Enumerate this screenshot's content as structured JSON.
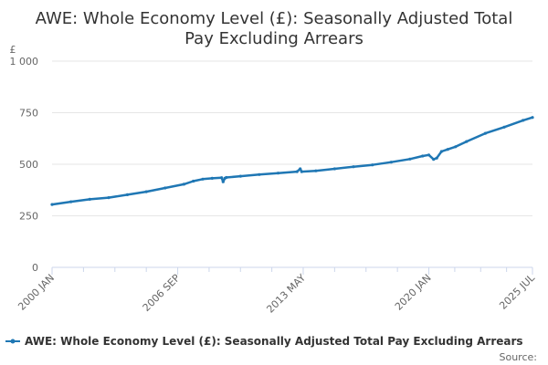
{
  "chart_data": {
    "type": "line",
    "title": "AWE: Whole Economy Level (£): Seasonally Adjusted Total Pay Excluding Arrears",
    "title_lines": [
      "AWE: Whole Economy Level (£): Seasonally Adjusted Total",
      "Pay Excluding Arrears"
    ],
    "ylabel": "£",
    "xlabel": "",
    "ylim": [
      0,
      1000
    ],
    "y_ticks": [
      {
        "value": 0,
        "label": "0"
      },
      {
        "value": 250,
        "label": "250"
      },
      {
        "value": 500,
        "label": "500"
      },
      {
        "value": 750,
        "label": "750"
      },
      {
        "value": 1000,
        "label": "1 000"
      }
    ],
    "x_range": [
      2000.0,
      2025.5
    ],
    "x_ticks": [
      {
        "value": 2000.0,
        "label": "2000 JAN"
      },
      {
        "value": 2006.67,
        "label": "2006 SEP"
      },
      {
        "value": 2013.33,
        "label": "2013 MAY"
      },
      {
        "value": 2020.0,
        "label": "2020 JAN"
      },
      {
        "value": 2025.5,
        "label": "2025 JUL"
      }
    ],
    "grid": true,
    "legend_position": "bottom",
    "series": [
      {
        "name": "AWE: Whole Economy Level (£): Seasonally Adjusted Total Pay Excluding Arrears",
        "color": "#1f77b4",
        "x": [
          2000.0,
          2001.0,
          2002.0,
          2003.0,
          2004.0,
          2005.0,
          2006.0,
          2007.0,
          2007.5,
          2008.0,
          2008.5,
          2009.0,
          2009.08,
          2009.17,
          2009.25,
          2010.0,
          2011.0,
          2012.0,
          2013.0,
          2013.17,
          2013.25,
          2014.0,
          2015.0,
          2016.0,
          2017.0,
          2018.0,
          2019.0,
          2019.67,
          2020.0,
          2020.25,
          2020.42,
          2020.67,
          2021.0,
          2021.42,
          2022.0,
          2023.0,
          2024.0,
          2025.0,
          2025.5
        ],
        "values": [
          305,
          318,
          330,
          338,
          352,
          367,
          385,
          403,
          418,
          428,
          432,
          435,
          415,
          432,
          436,
          442,
          450,
          457,
          464,
          478,
          464,
          468,
          478,
          488,
          497,
          510,
          525,
          540,
          545,
          524,
          530,
          562,
          572,
          585,
          610,
          650,
          680,
          713,
          727
        ]
      }
    ]
  },
  "legend": {
    "label": "AWE: Whole Economy Level (£): Seasonally Adjusted Total Pay Excluding Arrears"
  },
  "source": {
    "label": "Source:"
  },
  "colors": {
    "series": "#1f77b4",
    "grid": "#e6e6e6",
    "axis": "#ccd6eb"
  }
}
